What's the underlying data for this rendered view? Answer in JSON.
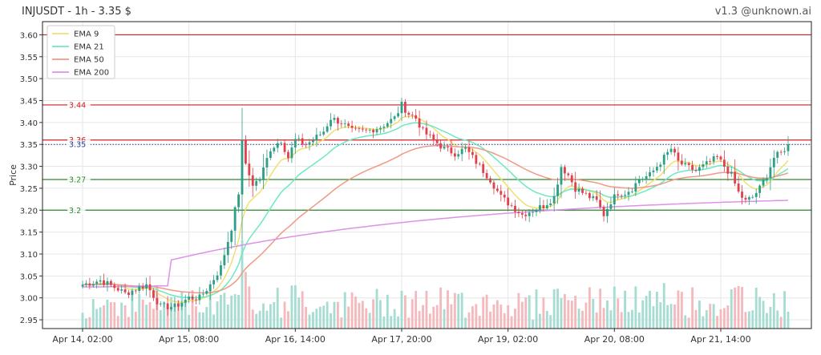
{
  "header": {
    "title": "INJUSDT - 1h - 3.35 $",
    "version": "v1.3 @unknown.ai"
  },
  "chart_data": {
    "type": "candlestick",
    "symbol": "INJUSDT",
    "interval": "1h",
    "last_price": 3.35,
    "ylabel": "Price",
    "ylim": [
      2.93,
      3.63
    ],
    "yticks": [
      "2.95",
      "3.00",
      "3.05",
      "3.10",
      "3.15",
      "3.20",
      "3.25",
      "3.30",
      "3.35",
      "3.40",
      "3.45",
      "3.50",
      "3.55",
      "3.60"
    ],
    "xticks": [
      "Apr 14, 02:00",
      "Apr 15, 08:00",
      "Apr 16, 14:00",
      "Apr 17, 20:00",
      "Apr 19, 02:00",
      "Apr 20, 08:00",
      "Apr 21, 14:00"
    ],
    "xtick_hours": [
      0,
      30,
      60,
      90,
      120,
      150,
      180
    ],
    "legend": {
      "position": "top-left",
      "entries": [
        {
          "name": "EMA 9",
          "color": "#f0e070"
        },
        {
          "name": "EMA 21",
          "color": "#6ee8c2"
        },
        {
          "name": "EMA 50",
          "color": "#f09a86"
        },
        {
          "name": "EMA 200",
          "color": "#dd92e8"
        }
      ]
    },
    "levels": [
      {
        "price": 3.6,
        "label": "",
        "color": "#d02020",
        "style": "solid"
      },
      {
        "price": 3.44,
        "label": "3.44",
        "color": "#d02020",
        "style": "solid"
      },
      {
        "price": 3.36,
        "label": "3.36",
        "color": "#d02020",
        "style": "solid"
      },
      {
        "price": 3.35,
        "label": "3.35",
        "color": "#1a3a9a",
        "style": "dotted"
      },
      {
        "price": 3.27,
        "label": "3.27",
        "color": "#2a8a2a",
        "style": "solid"
      },
      {
        "price": 3.2,
        "label": "3.2",
        "color": "#2a8a2a",
        "style": "solid"
      }
    ],
    "colors": {
      "up": "#2e9e86",
      "down": "#e0414e",
      "vol_up": "#a6dcd2",
      "vol_down": "#f4b9bd",
      "grid": "#e6e6e6"
    },
    "close_keypoints": [
      [
        0,
        3.03
      ],
      [
        5,
        3.04
      ],
      [
        10,
        3.02
      ],
      [
        12,
        3.01
      ],
      [
        15,
        3.02
      ],
      [
        18,
        3.03
      ],
      [
        22,
        2.98
      ],
      [
        26,
        2.98
      ],
      [
        30,
        3.0
      ],
      [
        33,
        3.0
      ],
      [
        36,
        3.03
      ],
      [
        39,
        3.07
      ],
      [
        42,
        3.16
      ],
      [
        44,
        3.24
      ],
      [
        45,
        3.36
      ],
      [
        46,
        3.3
      ],
      [
        48,
        3.26
      ],
      [
        50,
        3.27
      ],
      [
        53,
        3.34
      ],
      [
        56,
        3.36
      ],
      [
        58,
        3.32
      ],
      [
        60,
        3.36
      ],
      [
        63,
        3.35
      ],
      [
        65,
        3.36
      ],
      [
        68,
        3.38
      ],
      [
        70,
        3.41
      ],
      [
        73,
        3.4
      ],
      [
        76,
        3.38
      ],
      [
        80,
        3.38
      ],
      [
        84,
        3.39
      ],
      [
        86,
        3.4
      ],
      [
        88,
        3.41
      ],
      [
        90,
        3.44
      ],
      [
        92,
        3.42
      ],
      [
        94,
        3.41
      ],
      [
        96,
        3.38
      ],
      [
        99,
        3.36
      ],
      [
        102,
        3.34
      ],
      [
        105,
        3.33
      ],
      [
        108,
        3.34
      ],
      [
        110,
        3.32
      ],
      [
        112,
        3.3
      ],
      [
        115,
        3.27
      ],
      [
        118,
        3.23
      ],
      [
        121,
        3.21
      ],
      [
        124,
        3.19
      ],
      [
        127,
        3.2
      ],
      [
        130,
        3.21
      ],
      [
        133,
        3.23
      ],
      [
        135,
        3.3
      ],
      [
        137,
        3.28
      ],
      [
        139,
        3.25
      ],
      [
        141,
        3.24
      ],
      [
        143,
        3.23
      ],
      [
        145,
        3.22
      ],
      [
        147,
        3.19
      ],
      [
        149,
        3.22
      ],
      [
        151,
        3.24
      ],
      [
        153,
        3.24
      ],
      [
        155,
        3.25
      ],
      [
        157,
        3.27
      ],
      [
        160,
        3.28
      ],
      [
        162,
        3.3
      ],
      [
        164,
        3.32
      ],
      [
        166,
        3.34
      ],
      [
        168,
        3.31
      ],
      [
        170,
        3.3
      ],
      [
        173,
        3.29
      ],
      [
        175,
        3.3
      ],
      [
        177,
        3.31
      ],
      [
        179,
        3.32
      ],
      [
        181,
        3.3
      ],
      [
        183,
        3.28
      ],
      [
        185,
        3.24
      ],
      [
        187,
        3.22
      ],
      [
        189,
        3.23
      ],
      [
        191,
        3.25
      ],
      [
        193,
        3.28
      ],
      [
        195,
        3.32
      ],
      [
        197,
        3.33
      ],
      [
        199,
        3.35
      ]
    ]
  }
}
